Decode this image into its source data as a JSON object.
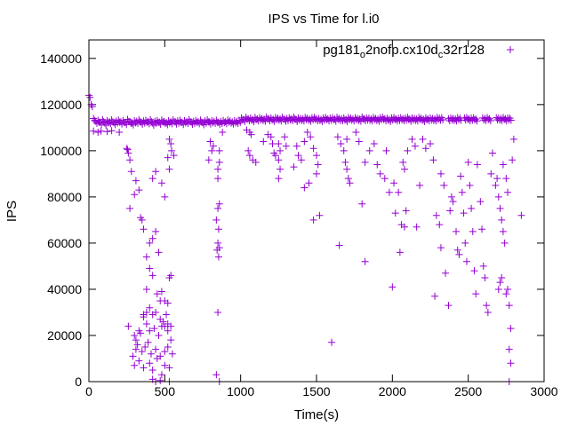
{
  "chart_data": {
    "type": "scatter",
    "title": "IPS vs Time for l.i0",
    "xlabel": "Time(s)",
    "ylabel": "IPS",
    "xlim": [
      0,
      3000
    ],
    "ylim": [
      0,
      148000
    ],
    "xticks": [
      0,
      500,
      1000,
      1500,
      2000,
      2500,
      3000
    ],
    "yticks": [
      0,
      20000,
      40000,
      60000,
      80000,
      100000,
      120000,
      140000
    ],
    "grid": false,
    "legend_position": "top-right",
    "marker": "plus",
    "series": [
      {
        "name": "pg181_o2nofp.cx10d_c32r128",
        "color": "#9400d3",
        "band": {
          "x_start": 0,
          "x_step": 15,
          "y": [
            124000,
            120000,
            114000,
            112800,
            113200,
            112400,
            113500,
            112000,
            113000,
            112600,
            113400,
            112200,
            112900,
            113300,
            112500,
            113100,
            112300,
            113600,
            112700,
            112100,
            113000,
            112800,
            113400,
            112400,
            112900,
            113200,
            112600,
            113500,
            112000,
            112800,
            113100,
            112400,
            113300,
            112700,
            112200,
            113000,
            112600,
            113400,
            112500,
            112900,
            113200,
            112300,
            113000,
            112700,
            113500,
            112400,
            112800,
            113100,
            112600,
            113300,
            112200,
            112900,
            113400,
            112500,
            113000,
            112800,
            113200,
            112400,
            112700,
            113100,
            112600,
            113300,
            112900,
            112500,
            113000,
            112700,
            113200,
            114200,
            113600,
            114500,
            113900,
            114100,
            113500,
            114400,
            113800,
            114300,
            114000,
            113700,
            114600,
            113900,
            114200,
            113600,
            114400,
            114100,
            113800,
            114500,
            113700,
            114000,
            114300,
            113900,
            114600,
            113600,
            114200,
            114000,
            113800,
            114400,
            114100,
            113700,
            114300,
            114500,
            113900,
            114000,
            113600,
            114200,
            114400,
            113800,
            114100,
            114300,
            113700,
            114500,
            114000,
            113900,
            114200,
            113600,
            114400,
            114100,
            113800,
            114300,
            114000,
            113700,
            114600,
            113900,
            114200,
            114100,
            113800,
            114400,
            114000,
            113700,
            114300,
            114500,
            113900,
            114100,
            113600,
            114200,
            114400,
            113800,
            114000,
            114300,
            113900,
            114100,
            114500,
            113700,
            114200,
            114000,
            113800,
            114400,
            114100,
            113600,
            114300,
            113900,
            114200,
            114000,
            113800,
            114400,
            114100,
            114300,
            null,
            null,
            113900,
            114200,
            114000,
            113800,
            114300,
            114100,
            null,
            114200,
            114400,
            113900,
            114100,
            114300,
            113800,
            null,
            null,
            114200,
            114000,
            114400,
            113900,
            null,
            null,
            114300,
            114100,
            114000,
            114400,
            113800,
            114200,
            114100
          ]
        },
        "points": [
          [
            30,
            108500
          ],
          [
            60,
            108000
          ],
          [
            80,
            108500
          ],
          [
            120,
            108300
          ],
          [
            150,
            108700
          ],
          [
            200,
            108000
          ],
          [
            250,
            101000
          ],
          [
            255,
            100500
          ],
          [
            260,
            99000
          ],
          [
            270,
            96000
          ],
          [
            280,
            91000
          ],
          [
            270,
            75000
          ],
          [
            300,
            81000
          ],
          [
            310,
            87000
          ],
          [
            330,
            83000
          ],
          [
            340,
            71000
          ],
          [
            360,
            66000
          ],
          [
            380,
            54000
          ],
          [
            350,
            70000
          ],
          [
            400,
            60000
          ],
          [
            420,
            62000
          ],
          [
            440,
            65000
          ],
          [
            460,
            56000
          ],
          [
            400,
            49000
          ],
          [
            420,
            46000
          ],
          [
            380,
            40000
          ],
          [
            450,
            38000
          ],
          [
            470,
            35000
          ],
          [
            480,
            39000
          ],
          [
            500,
            35000
          ],
          [
            530,
            45000
          ],
          [
            540,
            46000
          ],
          [
            520,
            34000
          ],
          [
            510,
            29000
          ],
          [
            490,
            26000
          ],
          [
            400,
            32000
          ],
          [
            420,
            29000
          ],
          [
            360,
            28000
          ],
          [
            380,
            25000
          ],
          [
            400,
            22000
          ],
          [
            430,
            23000
          ],
          [
            460,
            20000
          ],
          [
            480,
            24000
          ],
          [
            500,
            24000
          ],
          [
            520,
            25000
          ],
          [
            540,
            24000
          ],
          [
            300,
            20000
          ],
          [
            310,
            18000
          ],
          [
            320,
            16000
          ],
          [
            330,
            22000
          ],
          [
            350,
            13000
          ],
          [
            370,
            15000
          ],
          [
            390,
            17000
          ],
          [
            410,
            12000
          ],
          [
            440,
            14000
          ],
          [
            470,
            11000
          ],
          [
            500,
            13000
          ],
          [
            520,
            15000
          ],
          [
            540,
            18000
          ],
          [
            300,
            7000
          ],
          [
            330,
            9000
          ],
          [
            360,
            6000
          ],
          [
            400,
            8000
          ],
          [
            420,
            5000
          ],
          [
            450,
            10000
          ],
          [
            500,
            7000
          ],
          [
            530,
            6000
          ],
          [
            480,
            3000
          ],
          [
            420,
            1000
          ],
          [
            440,
            0
          ],
          [
            470,
            500
          ],
          [
            530,
            0
          ],
          [
            290,
            11000
          ],
          [
            310,
            14000
          ],
          [
            340,
            21000
          ],
          [
            360,
            29000
          ],
          [
            380,
            30000
          ],
          [
            440,
            30000
          ],
          [
            470,
            27000
          ],
          [
            520,
            22000
          ],
          [
            550,
            12000
          ],
          [
            260,
            24000
          ],
          [
            530,
            105000
          ],
          [
            540,
            103000
          ],
          [
            545,
            100000
          ],
          [
            520,
            97000
          ],
          [
            530,
            92000
          ],
          [
            560,
            98000
          ],
          [
            440,
            91000
          ],
          [
            420,
            88000
          ],
          [
            500,
            80000
          ],
          [
            480,
            86000
          ],
          [
            800,
            104000
          ],
          [
            810,
            100000
          ],
          [
            790,
            96000
          ],
          [
            820,
            102000
          ],
          [
            850,
            88000
          ],
          [
            860,
            100000
          ],
          [
            860,
            95000
          ],
          [
            850,
            92000
          ],
          [
            860,
            77000
          ],
          [
            850,
            75000
          ],
          [
            840,
            70000
          ],
          [
            855,
            66000
          ],
          [
            850,
            60000
          ],
          [
            860,
            58000
          ],
          [
            845,
            57000
          ],
          [
            855,
            54000
          ],
          [
            850,
            30000
          ],
          [
            840,
            3000
          ],
          [
            860,
            0
          ],
          [
            880,
            108000
          ],
          [
            1040,
            109000
          ],
          [
            1060,
            108000
          ],
          [
            1070,
            107000
          ],
          [
            1050,
            100000
          ],
          [
            1060,
            98000
          ],
          [
            1080,
            96000
          ],
          [
            1100,
            95000
          ],
          [
            1150,
            104000
          ],
          [
            1180,
            107000
          ],
          [
            1200,
            106000
          ],
          [
            1210,
            103000
          ],
          [
            1220,
            99000
          ],
          [
            1230,
            98000
          ],
          [
            1250,
            103000
          ],
          [
            1260,
            100000
          ],
          [
            1250,
            96000
          ],
          [
            1260,
            92000
          ],
          [
            1250,
            88000
          ],
          [
            1290,
            106000
          ],
          [
            1300,
            102000
          ],
          [
            1420,
            104000
          ],
          [
            1440,
            108000
          ],
          [
            1460,
            106000
          ],
          [
            1480,
            101000
          ],
          [
            1500,
            98000
          ],
          [
            1510,
            94000
          ],
          [
            1450,
            86000
          ],
          [
            1370,
            102000
          ],
          [
            1380,
            98000
          ],
          [
            1350,
            93000
          ],
          [
            1400,
            96000
          ],
          [
            1420,
            84000
          ],
          [
            1500,
            90000
          ],
          [
            1520,
            72000
          ],
          [
            1480,
            70000
          ],
          [
            1600,
            17000
          ],
          [
            1650,
            59000
          ],
          [
            1640,
            106000
          ],
          [
            1660,
            103000
          ],
          [
            1700,
            105000
          ],
          [
            1680,
            100000
          ],
          [
            1690,
            95000
          ],
          [
            1700,
            92000
          ],
          [
            1710,
            88000
          ],
          [
            1720,
            86000
          ],
          [
            1760,
            108000
          ],
          [
            1780,
            104000
          ],
          [
            1800,
            77000
          ],
          [
            1820,
            52000
          ],
          [
            1820,
            95000
          ],
          [
            1850,
            100000
          ],
          [
            1880,
            103000
          ],
          [
            1900,
            94000
          ],
          [
            1920,
            90000
          ],
          [
            1950,
            88000
          ],
          [
            1960,
            100000
          ],
          [
            1980,
            82000
          ],
          [
            2000,
            41000
          ],
          [
            2010,
            86000
          ],
          [
            2020,
            73000
          ],
          [
            2040,
            82000
          ],
          [
            2050,
            56000
          ],
          [
            2060,
            68000
          ],
          [
            2070,
            95000
          ],
          [
            2080,
            92000
          ],
          [
            2090,
            74000
          ],
          [
            2080,
            67000
          ],
          [
            2100,
            100000
          ],
          [
            2130,
            105000
          ],
          [
            2150,
            102000
          ],
          [
            2160,
            67000
          ],
          [
            2180,
            85000
          ],
          [
            2200,
            105000
          ],
          [
            2220,
            101000
          ],
          [
            2250,
            103000
          ],
          [
            2270,
            96000
          ],
          [
            2280,
            37000
          ],
          [
            2290,
            72000
          ],
          [
            2310,
            68000
          ],
          [
            2320,
            58000
          ],
          [
            2320,
            90000
          ],
          [
            2340,
            85000
          ],
          [
            2350,
            47000
          ],
          [
            2370,
            33000
          ],
          [
            2380,
            74000
          ],
          [
            2390,
            80000
          ],
          [
            2400,
            78000
          ],
          [
            2420,
            65000
          ],
          [
            2430,
            57000
          ],
          [
            2440,
            55000
          ],
          [
            2450,
            89000
          ],
          [
            2460,
            82000
          ],
          [
            2470,
            73000
          ],
          [
            2480,
            60000
          ],
          [
            2490,
            52000
          ],
          [
            2500,
            95000
          ],
          [
            2510,
            85000
          ],
          [
            2520,
            75000
          ],
          [
            2530,
            65000
          ],
          [
            2540,
            48000
          ],
          [
            2550,
            38000
          ],
          [
            2560,
            94000
          ],
          [
            2580,
            78000
          ],
          [
            2590,
            66000
          ],
          [
            2600,
            50000
          ],
          [
            2610,
            45000
          ],
          [
            2620,
            33000
          ],
          [
            2630,
            30000
          ],
          [
            2650,
            90000
          ],
          [
            2660,
            99000
          ],
          [
            2680,
            85000
          ],
          [
            2690,
            88000
          ],
          [
            2700,
            80000
          ],
          [
            2710,
            75000
          ],
          [
            2720,
            70000
          ],
          [
            2730,
            65000
          ],
          [
            2740,
            60000
          ],
          [
            2700,
            40000
          ],
          [
            2710,
            43000
          ],
          [
            2720,
            45000
          ],
          [
            2750,
            38000
          ],
          [
            2760,
            40000
          ],
          [
            2770,
            33000
          ],
          [
            2780,
            23000
          ],
          [
            2770,
            14000
          ],
          [
            2780,
            8000
          ],
          [
            2770,
            0
          ],
          [
            2790,
            96000
          ],
          [
            2800,
            105000
          ],
          [
            2850,
            72000
          ],
          [
            2750,
            88000
          ],
          [
            2730,
            94000
          ],
          [
            2760,
            82000
          ]
        ]
      }
    ]
  }
}
